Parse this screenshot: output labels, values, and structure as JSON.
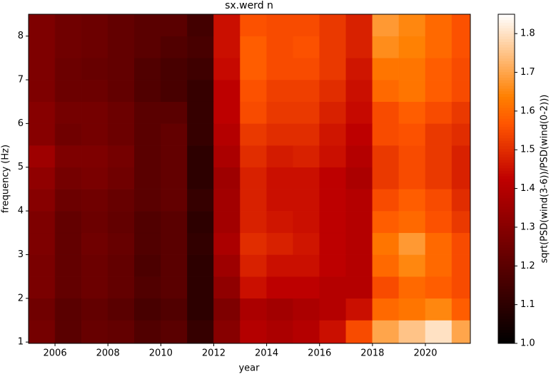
{
  "chart_data": {
    "type": "heatmap",
    "title": "sx.werd n",
    "xlabel": "year",
    "ylabel": "frequency (Hz)",
    "colorbar_label": "sqrt(PSD(wind(3-6))/PSD(wind(0-2)))",
    "colormap": "gist_heat",
    "xlim": [
      2005,
      2021.7
    ],
    "xticks": [
      2006,
      2008,
      2010,
      2012,
      2014,
      2016,
      2018,
      2020
    ],
    "ylim": [
      0.97,
      8.5
    ],
    "yticks": [
      1,
      2,
      3,
      4,
      5,
      6,
      7,
      8
    ],
    "clim": [
      1.0,
      1.85
    ],
    "cticks": [
      {
        "value": 1,
        "label": "1.0"
      },
      1.1,
      1.2,
      1.3,
      1.4,
      1.5,
      1.6,
      1.7,
      1.8
    ],
    "x_bins": [
      2005,
      2006,
      2007,
      2008,
      2009,
      2010,
      2011,
      2012,
      2013,
      2014,
      2015,
      2016,
      2017,
      2018,
      2019,
      2020,
      2021,
      2021.7
    ],
    "y_bins": [
      0.97,
      1.5,
      2,
      2.5,
      3,
      3.5,
      4,
      4.5,
      5,
      5.5,
      6,
      6.5,
      7,
      7.5,
      8,
      8.5
    ],
    "z": [
      [
        1.26,
        1.2,
        1.23,
        1.22,
        1.18,
        1.2,
        1.12,
        1.3,
        1.4,
        1.38,
        1.4,
        1.45,
        1.55,
        1.7,
        1.75,
        1.8,
        1.7
      ],
      [
        1.25,
        1.2,
        1.22,
        1.2,
        1.16,
        1.18,
        1.1,
        1.28,
        1.38,
        1.36,
        1.38,
        1.4,
        1.45,
        1.6,
        1.62,
        1.65,
        1.58
      ],
      [
        1.27,
        1.22,
        1.24,
        1.22,
        1.18,
        1.2,
        1.1,
        1.32,
        1.45,
        1.42,
        1.42,
        1.4,
        1.4,
        1.55,
        1.6,
        1.58,
        1.55
      ],
      [
        1.27,
        1.22,
        1.24,
        1.22,
        1.17,
        1.2,
        1.1,
        1.35,
        1.48,
        1.45,
        1.45,
        1.42,
        1.4,
        1.6,
        1.65,
        1.6,
        1.55
      ],
      [
        1.28,
        1.22,
        1.25,
        1.23,
        1.18,
        1.2,
        1.11,
        1.38,
        1.5,
        1.48,
        1.46,
        1.42,
        1.4,
        1.62,
        1.68,
        1.6,
        1.55
      ],
      [
        1.28,
        1.22,
        1.24,
        1.22,
        1.18,
        1.2,
        1.1,
        1.36,
        1.48,
        1.46,
        1.45,
        1.42,
        1.4,
        1.58,
        1.6,
        1.56,
        1.52
      ],
      [
        1.3,
        1.24,
        1.25,
        1.23,
        1.2,
        1.22,
        1.12,
        1.36,
        1.48,
        1.45,
        1.45,
        1.42,
        1.4,
        1.55,
        1.58,
        1.55,
        1.5
      ],
      [
        1.32,
        1.26,
        1.27,
        1.25,
        1.2,
        1.22,
        1.1,
        1.35,
        1.48,
        1.45,
        1.45,
        1.42,
        1.38,
        1.52,
        1.55,
        1.52,
        1.48
      ],
      [
        1.35,
        1.28,
        1.28,
        1.26,
        1.2,
        1.22,
        1.1,
        1.38,
        1.5,
        1.47,
        1.48,
        1.45,
        1.4,
        1.52,
        1.55,
        1.52,
        1.48
      ],
      [
        1.3,
        1.25,
        1.26,
        1.24,
        1.2,
        1.22,
        1.12,
        1.4,
        1.52,
        1.5,
        1.5,
        1.46,
        1.42,
        1.55,
        1.56,
        1.52,
        1.5
      ],
      [
        1.3,
        1.26,
        1.26,
        1.24,
        1.2,
        1.2,
        1.12,
        1.42,
        1.55,
        1.52,
        1.52,
        1.48,
        1.44,
        1.55,
        1.58,
        1.55,
        1.52
      ],
      [
        1.28,
        1.24,
        1.24,
        1.22,
        1.18,
        1.16,
        1.12,
        1.42,
        1.56,
        1.53,
        1.53,
        1.5,
        1.45,
        1.6,
        1.62,
        1.58,
        1.55
      ],
      [
        1.28,
        1.24,
        1.23,
        1.22,
        1.18,
        1.16,
        1.14,
        1.44,
        1.58,
        1.55,
        1.55,
        1.52,
        1.46,
        1.62,
        1.62,
        1.58,
        1.55
      ],
      [
        1.28,
        1.25,
        1.24,
        1.22,
        1.2,
        1.18,
        1.16,
        1.45,
        1.58,
        1.55,
        1.56,
        1.52,
        1.48,
        1.66,
        1.64,
        1.6,
        1.56
      ],
      [
        1.28,
        1.25,
        1.24,
        1.22,
        1.2,
        1.2,
        1.15,
        1.45,
        1.56,
        1.55,
        1.55,
        1.52,
        1.48,
        1.68,
        1.65,
        1.6,
        1.56
      ]
    ]
  }
}
